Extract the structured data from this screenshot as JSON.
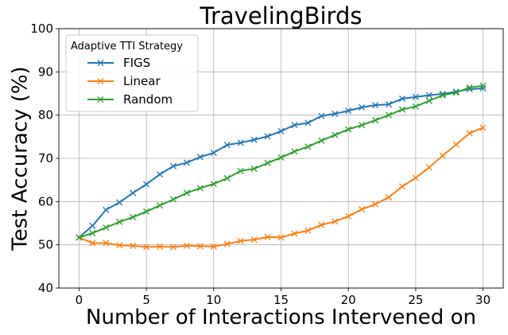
{
  "chart_data": {
    "type": "line",
    "title": "TravelingBirds",
    "xlabel": "Number of Interactions Intervened on",
    "ylabel": "Test Accuracy (%)",
    "xlim": [
      -1.5,
      31.5
    ],
    "ylim": [
      40,
      100
    ],
    "xticks": [
      0,
      5,
      10,
      15,
      20,
      25,
      30
    ],
    "yticks": [
      40,
      50,
      60,
      70,
      80,
      90,
      100
    ],
    "grid": true,
    "legend": {
      "title": "Adaptive TTI Strategy",
      "placement": "top-left"
    },
    "x": [
      0,
      1,
      2,
      3,
      4,
      5,
      6,
      7,
      8,
      9,
      10,
      11,
      12,
      13,
      14,
      15,
      16,
      17,
      18,
      19,
      20,
      21,
      22,
      23,
      24,
      25,
      26,
      27,
      28,
      29,
      30
    ],
    "series": [
      {
        "name": "FIGS",
        "color": "#1f77b4",
        "values": [
          51.7,
          54.4,
          58.1,
          59.8,
          62.0,
          64.0,
          66.3,
          68.2,
          69.0,
          70.3,
          71.3,
          73.1,
          73.6,
          74.3,
          75.1,
          76.3,
          77.7,
          78.2,
          79.8,
          80.3,
          81.0,
          81.8,
          82.3,
          82.5,
          83.8,
          84.2,
          84.6,
          84.9,
          85.4,
          86.0,
          86.2
        ]
      },
      {
        "name": "Linear",
        "color": "#ff7f0e",
        "values": [
          51.7,
          50.4,
          50.4,
          49.9,
          49.8,
          49.5,
          49.6,
          49.5,
          49.8,
          49.7,
          49.6,
          50.2,
          50.9,
          51.2,
          51.8,
          51.7,
          52.6,
          53.3,
          54.6,
          55.4,
          56.6,
          58.2,
          59.4,
          61.0,
          63.5,
          65.5,
          67.9,
          70.6,
          73.2,
          75.8,
          77.1
        ]
      },
      {
        "name": "Random",
        "color": "#2ca02c",
        "values": [
          51.7,
          52.7,
          54.0,
          55.3,
          56.4,
          57.7,
          59.1,
          60.5,
          62.0,
          63.1,
          64.1,
          65.4,
          67.1,
          67.6,
          68.9,
          70.2,
          71.6,
          72.7,
          74.1,
          75.4,
          76.7,
          77.7,
          78.8,
          80.0,
          81.3,
          82.0,
          83.3,
          84.6,
          85.2,
          86.4,
          86.8
        ]
      }
    ]
  }
}
